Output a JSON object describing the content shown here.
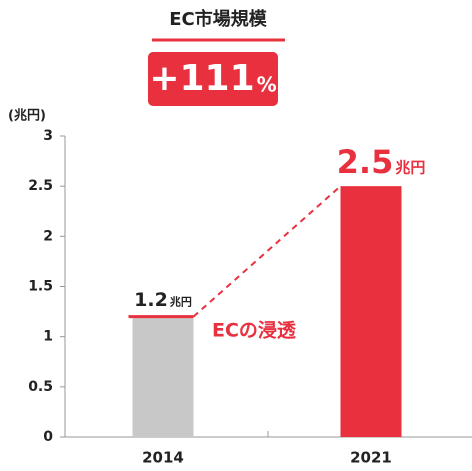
{
  "chart_data": {
    "type": "bar",
    "title": "EC市場規模",
    "badge": {
      "text": "+111",
      "unit": "%"
    },
    "y_label": "(兆円)",
    "unit": "兆円",
    "annotation": "ECの浸透",
    "categories": [
      "2014",
      "2021"
    ],
    "values": [
      1.2,
      2.5
    ],
    "colors": [
      "#c8c8c8",
      "#e8303f"
    ],
    "accent": "#e8303f",
    "ylim": [
      0,
      3
    ],
    "yticks": [
      0,
      0.5,
      1,
      1.5,
      2,
      2.5,
      3
    ],
    "grid": false
  }
}
